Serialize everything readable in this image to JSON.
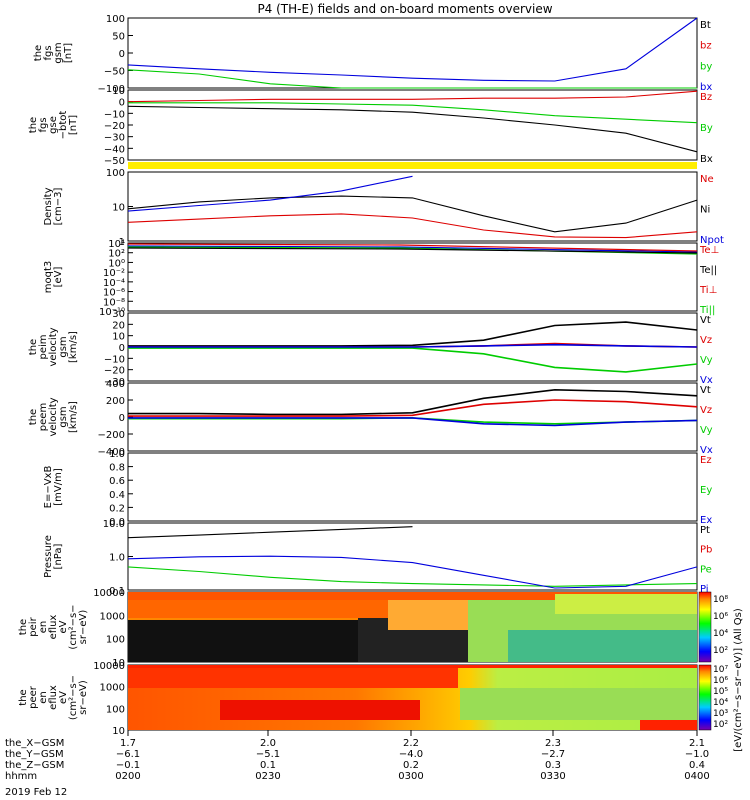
{
  "title": "P4 (TH-E) fields and on-board moments overview",
  "colors": {
    "black": "#000000",
    "red": "#dd0000",
    "green": "#00cc00",
    "blue": "#0000dd",
    "yellow": "#ffee00"
  },
  "panels": [
    {
      "id": "fgs-gsm",
      "ylabel": [
        "the",
        "fgs",
        "gsm",
        "[nT]"
      ],
      "yticks": [
        "100",
        "50",
        "0",
        "−50",
        "−100"
      ],
      "legend": [
        {
          "text": "Bt",
          "color": "black"
        },
        {
          "text": "bz",
          "color": "red"
        },
        {
          "text": "by",
          "color": "green"
        },
        {
          "text": "bx",
          "color": "blue"
        }
      ]
    },
    {
      "id": "fgs-gse",
      "ylabel": [
        "the",
        "fgs",
        "gse",
        "−btot",
        "[nT]"
      ],
      "yticks": [
        "10",
        "0",
        "−10",
        "−20",
        "−30",
        "−40",
        "−50"
      ],
      "legend": [
        {
          "text": "Bz",
          "color": "red"
        },
        {
          "text": "By",
          "color": "green"
        },
        {
          "text": "Bx",
          "color": "black"
        }
      ]
    },
    {
      "id": "density",
      "ylabel": [
        "Density",
        "[cm−3]"
      ],
      "yticks": [
        "100",
        "10",
        "1"
      ],
      "legend": [
        {
          "text": "Ne",
          "color": "red"
        },
        {
          "text": "Ni",
          "color": "black"
        },
        {
          "text": "Npot",
          "color": "blue"
        }
      ]
    },
    {
      "id": "temperature",
      "ylabel": [
        "moqt3",
        "[eV]"
      ],
      "yticks": [
        "10⁴",
        "10²",
        "10⁰",
        "10⁻²",
        "10⁻⁴",
        "10⁻⁶",
        "10⁻⁸",
        "10⁻¹⁰"
      ],
      "legend": [
        {
          "text": "Te⊥",
          "color": "red"
        },
        {
          "text": "Te||",
          "color": "black"
        },
        {
          "text": "Ti⊥",
          "color": "red"
        },
        {
          "text": "Ti||",
          "color": "green"
        }
      ]
    },
    {
      "id": "peim-velocity",
      "ylabel": [
        "the",
        "peim",
        "velocity",
        "gsm",
        "[km/s]"
      ],
      "yticks": [
        "30",
        "20",
        "10",
        "0",
        "−10",
        "−20",
        "−30"
      ],
      "legend": [
        {
          "text": "Vt",
          "color": "black"
        },
        {
          "text": "Vz",
          "color": "red"
        },
        {
          "text": "Vy",
          "color": "green"
        },
        {
          "text": "Vx",
          "color": "blue"
        }
      ]
    },
    {
      "id": "peem-velocity",
      "ylabel": [
        "the",
        "peem",
        "velocity",
        "gsm",
        "[km/s]"
      ],
      "yticks": [
        "400",
        "200",
        "0",
        "−200",
        "−400"
      ],
      "legend": [
        {
          "text": "Vt",
          "color": "black"
        },
        {
          "text": "Vz",
          "color": "red"
        },
        {
          "text": "Vy",
          "color": "green"
        },
        {
          "text": "Vx",
          "color": "blue"
        }
      ]
    },
    {
      "id": "efield",
      "ylabel": [
        "E=−VxB",
        "[mV/m]"
      ],
      "yticks": [
        "1.0",
        "0.8",
        "0.6",
        "0.4",
        "0.2",
        "0.0"
      ],
      "legend": [
        {
          "text": "Ez",
          "color": "red"
        },
        {
          "text": "Ey",
          "color": "green"
        },
        {
          "text": "Ex",
          "color": "blue"
        }
      ]
    },
    {
      "id": "pressure",
      "ylabel": [
        "Pressure",
        "[nPa]"
      ],
      "yticks": [
        "10.0",
        "1.0",
        "0.1"
      ],
      "legend": [
        {
          "text": "Pt",
          "color": "black"
        },
        {
          "text": "Pb",
          "color": "red"
        },
        {
          "text": "Pe",
          "color": "green"
        },
        {
          "text": "Pi",
          "color": "blue"
        }
      ]
    },
    {
      "id": "peir-spectrogram",
      "ylabel": [
        "the",
        "peir",
        "en",
        "eflux",
        "eV",
        "(cm²−s−",
        "sr−eV)"
      ],
      "yticks": [
        "10000",
        "1000",
        "100",
        "10"
      ]
    },
    {
      "id": "peer-spectrogram",
      "ylabel": [
        "the",
        "peer",
        "en",
        "eflux",
        "eV",
        "(cm²−s−",
        "sr−eV)"
      ],
      "yticks": [
        "10000",
        "1000",
        "100",
        "10"
      ]
    }
  ],
  "colorbar": {
    "label": "[eV/(cm²−s−sr−eV)] (All Qs)",
    "ticks_top": [
      "10⁸",
      "10⁶",
      "10⁴",
      "10²"
    ],
    "ticks_bottom": [
      "10⁷",
      "10⁶",
      "10⁵",
      "10⁴",
      "10³",
      "10²"
    ]
  },
  "xaxis": {
    "rows": [
      {
        "label": "the_X−GSM",
        "values": [
          "1.7",
          "2.0",
          "2.2",
          "2.3",
          "2.1"
        ]
      },
      {
        "label": "the_Y−GSM",
        "values": [
          "−6.1",
          "−5.1",
          "−4.0",
          "−2.7",
          "−1.0"
        ]
      },
      {
        "label": "the_Z−GSM",
        "values": [
          "−0.1",
          "0.1",
          "0.2",
          "0.3",
          "0.4"
        ]
      },
      {
        "label": "hhmm",
        "values": [
          "0200",
          "0230",
          "0300",
          "0330",
          "0400"
        ]
      }
    ],
    "date": "2019 Feb 12"
  },
  "chart_data": {
    "type": "line",
    "title": "P4 (TH-E) fields and on-board moments overview",
    "x": [
      "0200",
      "0215",
      "0230",
      "0245",
      "0300",
      "0315",
      "0330",
      "0345",
      "0400"
    ],
    "series": [
      {
        "name": "Bt",
        "panel": "fgs-gsm",
        "values": [
          null,
          null,
          null,
          null,
          null,
          null,
          null,
          null,
          null
        ]
      },
      {
        "name": "bx",
        "panel": "fgs-gsm",
        "values": [
          -34,
          -45,
          -55,
          -63,
          -72,
          -78,
          -80,
          -45,
          100
        ]
      },
      {
        "name": "by",
        "panel": "fgs-gsm",
        "values": [
          -48,
          -60,
          -88,
          -112,
          -130,
          -140,
          -145,
          -150,
          -160
        ]
      },
      {
        "name": "Bz",
        "panel": "fgs-gse",
        "values": [
          0,
          1,
          2,
          2,
          2,
          3,
          3,
          4,
          9
        ]
      },
      {
        "name": "By",
        "panel": "fgs-gse",
        "values": [
          -1,
          -1,
          -1,
          -2,
          -3,
          -7,
          -12,
          -15,
          -18
        ]
      },
      {
        "name": "Bx",
        "panel": "fgs-gse",
        "values": [
          -4,
          -5,
          -6,
          -7,
          -9,
          -14,
          -20,
          -27,
          -43
        ]
      },
      {
        "name": "Ne",
        "panel": "density",
        "values": [
          1.3,
          1.8,
          2.5,
          3.0,
          2.0,
          0.6,
          0.3,
          0.28,
          0.5
        ]
      },
      {
        "name": "Ni",
        "panel": "density",
        "values": [
          5,
          10,
          15,
          18,
          15,
          2.5,
          0.5,
          1.2,
          12
        ]
      },
      {
        "name": "Npot",
        "panel": "density",
        "values": [
          4,
          7,
          12,
          30,
          130,
          null,
          null,
          null,
          null
        ]
      },
      {
        "name": "Vt",
        "panel": "peim-velocity",
        "values": [
          1,
          1,
          1,
          1,
          1.5,
          6,
          19,
          22,
          15
        ]
      },
      {
        "name": "Vz",
        "panel": "peim-velocity",
        "values": [
          0,
          0,
          0,
          0,
          0,
          1,
          3,
          1,
          0
        ]
      },
      {
        "name": "Vy",
        "panel": "peim-velocity",
        "values": [
          -1,
          -1,
          -1,
          -1,
          -1,
          -6,
          -18,
          -22,
          -15
        ]
      },
      {
        "name": "Vx",
        "panel": "peim-velocity",
        "values": [
          0,
          0,
          0,
          0,
          0,
          1,
          2,
          1,
          0
        ]
      },
      {
        "name": "Vt",
        "panel": "peem-velocity",
        "values": [
          40,
          40,
          30,
          30,
          50,
          220,
          320,
          300,
          250
        ]
      },
      {
        "name": "Vz",
        "panel": "peem-velocity",
        "values": [
          10,
          10,
          10,
          10,
          20,
          150,
          200,
          180,
          120
        ]
      },
      {
        "name": "Vy",
        "panel": "peem-velocity",
        "values": [
          -20,
          -20,
          -20,
          -20,
          -10,
          -60,
          -80,
          -60,
          -40
        ]
      },
      {
        "name": "Vx",
        "panel": "peem-velocity",
        "values": [
          -10,
          -10,
          -10,
          -10,
          -10,
          -80,
          -100,
          -60,
          -40
        ]
      },
      {
        "name": "Pt",
        "panel": "pressure",
        "values": [
          6,
          8,
          11,
          15,
          20,
          null,
          null,
          null,
          null
        ]
      },
      {
        "name": "Pe",
        "panel": "pressure",
        "values": [
          0.25,
          0.15,
          0.08,
          0.05,
          0.04,
          0.035,
          0.03,
          0.035,
          0.04
        ]
      },
      {
        "name": "Pi",
        "panel": "pressure",
        "values": [
          0.6,
          0.75,
          0.8,
          0.7,
          0.4,
          0.1,
          0.025,
          0.03,
          0.25
        ]
      }
    ]
  }
}
